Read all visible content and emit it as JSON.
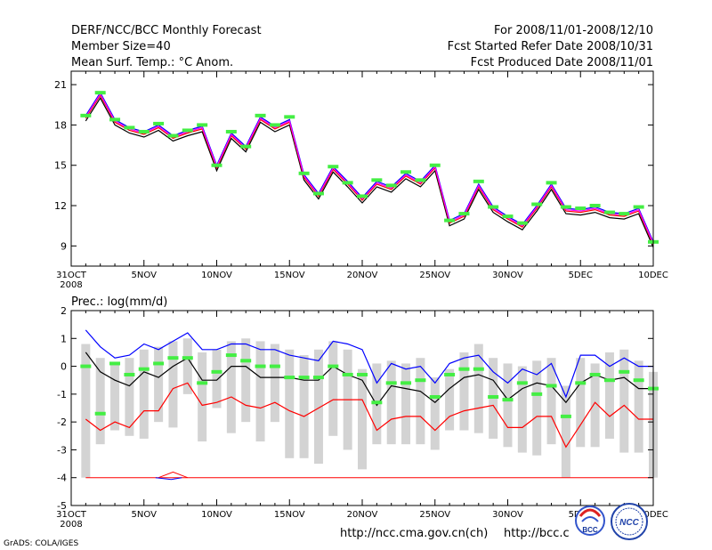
{
  "header": {
    "title": "DERF/NCC/BCC Monthly Forecast",
    "member_size": "Member Size=40",
    "variable": "Mean Surf. Temp.: °C Anom.",
    "period": "For 2008/11/01-2008/12/10",
    "started": "Fcst Started Refer Date 2008/10/31",
    "produced": "Fcst Produced Date 2008/11/01"
  },
  "footer": {
    "grads": "GrADS: COLA/IGES",
    "url1": "http://ncc.cma.gov.cn(ch)",
    "url2": "http://bcc.c",
    "logo_left": "BCC",
    "logo_right": "NCC"
  },
  "colors": {
    "ensemble_mean": "#000000",
    "upper": "#0000ff",
    "lower": "#ff0000",
    "mid": "#ff00ff",
    "marker": "#44ee44",
    "bar": "#d3d3d3"
  },
  "chart_data": [
    {
      "type": "line",
      "title": "Mean Surf. Temp.: °C Anom.",
      "x": [
        1,
        2,
        3,
        4,
        5,
        6,
        7,
        8,
        9,
        10,
        11,
        12,
        13,
        14,
        15,
        16,
        17,
        18,
        19,
        20,
        21,
        22,
        23,
        24,
        25,
        26,
        27,
        28,
        29,
        30,
        31,
        32,
        33,
        34,
        35,
        36,
        37,
        38,
        39,
        40
      ],
      "xtick_positions": [
        0,
        5,
        10,
        15,
        20,
        25,
        30,
        35,
        40
      ],
      "xtick_labels": [
        "31OCT",
        "5NOV",
        "10NOV",
        "15NOV",
        "20NOV",
        "25NOV",
        "30NOV",
        "5DEC",
        "10DEC"
      ],
      "xtick_sublabel": "2008",
      "ylim": [
        7.5,
        22
      ],
      "yticks": [
        9,
        12,
        15,
        18,
        21
      ],
      "series": [
        {
          "name": "black",
          "color": "#000000",
          "values": [
            18.3,
            20.0,
            18.0,
            17.4,
            17.1,
            17.6,
            16.8,
            17.2,
            17.5,
            14.6,
            17.0,
            16.0,
            18.2,
            17.5,
            18.0,
            13.9,
            12.5,
            14.5,
            13.4,
            12.2,
            13.4,
            13.0,
            14.0,
            13.4,
            14.6,
            10.5,
            11.0,
            13.2,
            11.5,
            10.8,
            10.2,
            11.6,
            13.2,
            11.4,
            11.3,
            11.5,
            11.1,
            11.0,
            11.4,
            8.9
          ]
        },
        {
          "name": "blue",
          "color": "#0000ff",
          "values": [
            18.7,
            20.4,
            18.4,
            17.8,
            17.5,
            18.0,
            17.2,
            17.6,
            17.9,
            15.0,
            17.4,
            16.4,
            18.6,
            17.9,
            18.4,
            14.3,
            12.9,
            14.9,
            13.8,
            12.6,
            13.8,
            13.4,
            14.4,
            13.8,
            15.0,
            10.9,
            11.4,
            13.6,
            11.9,
            11.2,
            10.6,
            12.0,
            13.6,
            11.8,
            11.7,
            11.9,
            11.5,
            11.4,
            11.8,
            9.3
          ]
        },
        {
          "name": "red",
          "color": "#ff0000",
          "values": [
            18.5,
            20.2,
            18.2,
            17.6,
            17.3,
            17.8,
            17.0,
            17.4,
            17.7,
            14.8,
            17.2,
            16.2,
            18.4,
            17.7,
            18.2,
            14.1,
            12.7,
            14.7,
            13.6,
            12.4,
            13.6,
            13.2,
            14.2,
            13.6,
            14.8,
            10.7,
            11.2,
            13.4,
            11.7,
            11.0,
            10.4,
            11.8,
            13.4,
            11.6,
            11.5,
            11.7,
            11.3,
            11.2,
            11.6,
            9.1
          ]
        },
        {
          "name": "magenta",
          "color": "#ff00ff",
          "values": [
            18.6,
            20.3,
            18.3,
            17.7,
            17.4,
            17.9,
            17.1,
            17.5,
            17.8,
            14.9,
            17.3,
            16.3,
            18.5,
            17.8,
            18.3,
            14.2,
            12.8,
            14.8,
            13.7,
            12.5,
            13.7,
            13.3,
            14.3,
            13.7,
            14.9,
            10.8,
            11.3,
            13.5,
            11.8,
            11.1,
            10.5,
            11.9,
            13.5,
            11.7,
            11.6,
            11.8,
            11.4,
            11.3,
            11.7,
            9.2
          ]
        }
      ],
      "markers": {
        "name": "observed",
        "color": "#44ee44",
        "values": [
          18.7,
          20.4,
          18.4,
          17.8,
          17.5,
          18.1,
          17.2,
          17.6,
          18.0,
          15.0,
          17.5,
          16.4,
          18.7,
          18.0,
          18.6,
          14.4,
          12.9,
          14.9,
          13.7,
          12.7,
          13.9,
          13.5,
          14.5,
          13.9,
          15.0,
          10.9,
          11.4,
          13.8,
          11.9,
          11.2,
          10.7,
          12.1,
          13.7,
          11.9,
          11.8,
          12.0,
          11.5,
          11.4,
          11.9,
          9.3
        ]
      }
    },
    {
      "type": "bar",
      "title": "Prec.: log(mm/d)",
      "x": [
        1,
        2,
        3,
        4,
        5,
        6,
        7,
        8,
        9,
        10,
        11,
        12,
        13,
        14,
        15,
        16,
        17,
        18,
        19,
        20,
        21,
        22,
        23,
        24,
        25,
        26,
        27,
        28,
        29,
        30,
        31,
        32,
        33,
        34,
        35,
        36,
        37,
        38,
        39,
        40
      ],
      "xtick_positions": [
        0,
        5,
        10,
        15,
        20,
        25,
        30,
        35,
        40
      ],
      "xtick_labels": [
        "31OCT",
        "5NOV",
        "10NOV",
        "15NOV",
        "20NOV",
        "25NOV",
        "30NOV",
        "5DEC",
        "10DEC"
      ],
      "xtick_sublabel": "2008",
      "ylim": [
        -5,
        2
      ],
      "yticks": [
        -5,
        -4,
        -3,
        -2,
        -1,
        0,
        1,
        2
      ],
      "bars": {
        "name": "ensemble range",
        "color": "#d3d3d3",
        "top": [
          0.8,
          0.3,
          0.1,
          0.3,
          0.6,
          0.7,
          0.9,
          1.0,
          0.5,
          0.6,
          0.9,
          1.0,
          0.9,
          0.8,
          0.6,
          0.4,
          0.6,
          0.9,
          0.6,
          -0.1,
          0.1,
          0.2,
          0.1,
          0.3,
          -0.4,
          -0.1,
          0.5,
          0.8,
          0.3,
          0.1,
          0.0,
          0.2,
          0.3,
          -0.7,
          0.3,
          0.1,
          0.5,
          0.6,
          0.2,
          -0.2
        ],
        "bottom": [
          -4.0,
          -2.8,
          -2.3,
          -2.5,
          -2.6,
          -2.0,
          -2.2,
          -1.0,
          -2.7,
          -1.5,
          -2.4,
          -2.0,
          -2.7,
          -2.0,
          -3.3,
          -3.3,
          -3.5,
          -2.5,
          -3.0,
          -3.7,
          -2.8,
          -2.8,
          -2.8,
          -2.8,
          -3.0,
          -2.3,
          -2.3,
          -2.4,
          -2.6,
          -2.9,
          -3.1,
          -3.2,
          -2.8,
          -4.0,
          -2.9,
          -2.9,
          -2.6,
          -3.1,
          -3.1,
          -4.0
        ]
      },
      "series": [
        {
          "name": "ensemble max",
          "color": "#0000ff",
          "values": [
            1.3,
            0.7,
            0.3,
            0.4,
            0.8,
            0.6,
            0.9,
            1.2,
            0.6,
            0.6,
            0.8,
            0.8,
            0.6,
            0.6,
            0.4,
            0.3,
            0.2,
            0.9,
            0.8,
            0.6,
            -0.6,
            0.1,
            -0.1,
            0.0,
            -0.6,
            0.1,
            0.3,
            0.4,
            -0.2,
            -0.6,
            -0.1,
            -0.3,
            0.1,
            -1.1,
            0.4,
            0.4,
            0.0,
            0.3,
            0.0,
            0.0
          ]
        },
        {
          "name": "ensemble mean",
          "color": "#000000",
          "values": [
            0.5,
            -0.2,
            -0.5,
            -0.7,
            -0.2,
            -0.4,
            0.0,
            0.3,
            -0.5,
            -0.5,
            0.0,
            0.0,
            -0.4,
            -0.4,
            -0.4,
            -0.5,
            -0.5,
            0.0,
            -0.3,
            -0.5,
            -1.4,
            -0.7,
            -0.8,
            -0.9,
            -1.3,
            -0.8,
            -0.4,
            -0.3,
            -0.5,
            -1.2,
            -0.8,
            -0.6,
            -0.7,
            -1.3,
            -0.6,
            -0.3,
            -0.5,
            -0.4,
            -0.8,
            -0.8
          ]
        },
        {
          "name": "ensemble min",
          "color": "#ff0000",
          "values": [
            -1.9,
            -2.3,
            -2.0,
            -2.2,
            -1.6,
            -1.6,
            -0.8,
            -0.6,
            -1.4,
            -1.3,
            -1.1,
            -1.4,
            -1.5,
            -1.3,
            -1.6,
            -1.8,
            -1.5,
            -1.2,
            -1.2,
            -1.2,
            -2.3,
            -1.9,
            -1.8,
            -1.8,
            -2.3,
            -1.8,
            -1.6,
            -1.5,
            -1.4,
            -2.2,
            -2.2,
            -1.8,
            -1.8,
            -2.9,
            -2.1,
            -1.3,
            -1.8,
            -1.4,
            -1.9,
            -1.9
          ]
        }
      ],
      "markers": {
        "name": "observed",
        "color": "#44ee44",
        "values": [
          0.0,
          -1.7,
          0.1,
          -0.3,
          -0.1,
          0.1,
          0.3,
          0.3,
          -0.6,
          -0.2,
          0.4,
          0.2,
          0.0,
          0.0,
          -0.4,
          -0.4,
          -0.4,
          0.0,
          -0.3,
          -0.3,
          -1.3,
          -0.6,
          -0.6,
          -0.5,
          -1.1,
          -0.3,
          -0.1,
          -0.1,
          -1.1,
          -1.2,
          -0.6,
          -1.0,
          -0.7,
          -1.8,
          -0.6,
          -0.3,
          -0.5,
          -0.2,
          -0.5,
          -0.8
        ]
      },
      "baseline": {
        "name": "lower bound",
        "color": "#ff0000",
        "value": -4.0
      },
      "spike": {
        "name": "spike",
        "x": 7,
        "value": -3.8
      }
    }
  ]
}
